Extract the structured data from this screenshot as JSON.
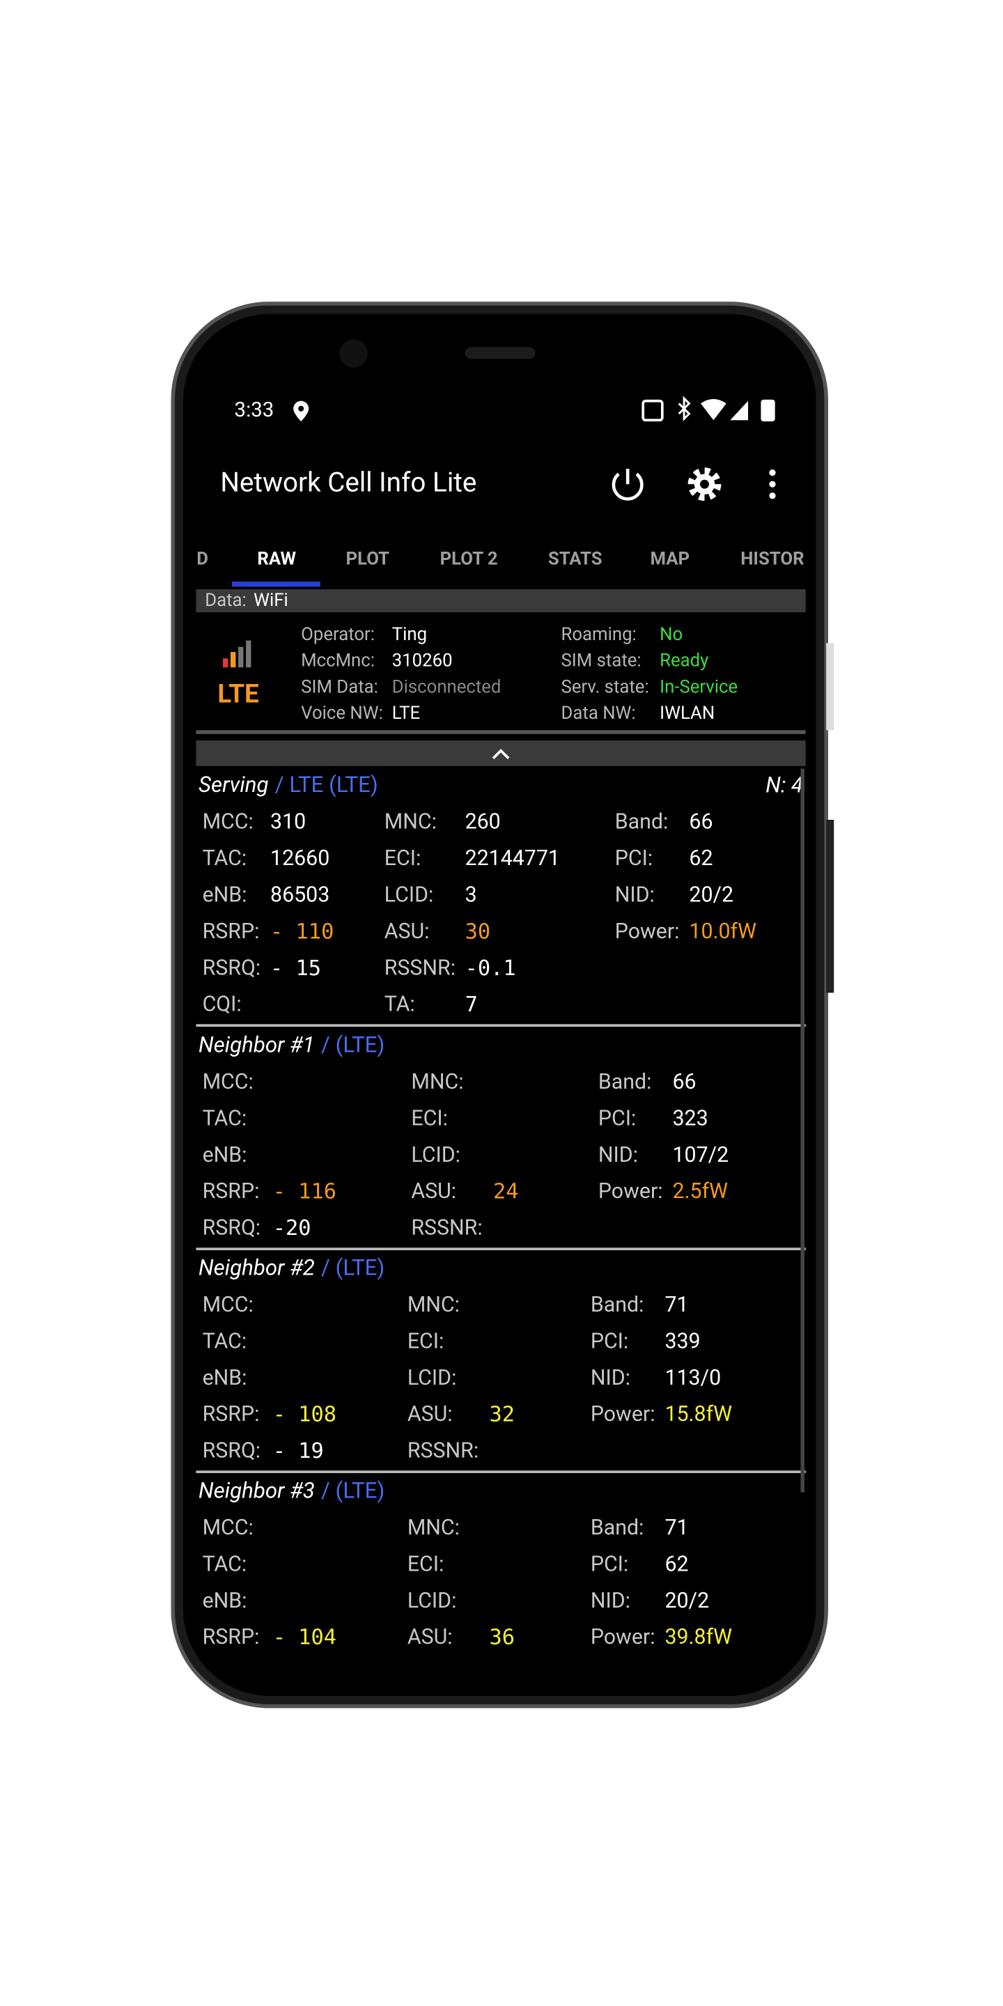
{
  "status_bar": {
    "time": "3:33"
  },
  "app_bar": {
    "title": "Network Cell Info Lite"
  },
  "tabs": {
    "items": [
      "D",
      "RAW",
      "PLOT",
      "PLOT 2",
      "STATS",
      "MAP",
      "HISTOR"
    ],
    "active": 1
  },
  "data_bar": {
    "label": "Data:",
    "value": "WiFi"
  },
  "info": {
    "network_type": "LTE",
    "left": [
      {
        "label": "Operator:",
        "value": "Ting"
      },
      {
        "label": "MccMnc:",
        "value": "310260"
      },
      {
        "label": "SIM Data:",
        "value": "Disconnected",
        "color": "#8a8a8a"
      },
      {
        "label": "Voice NW:",
        "value": "LTE"
      }
    ],
    "right": [
      {
        "label": "Roaming:",
        "value": "No",
        "color": "#3ddc3d"
      },
      {
        "label": "SIM state:",
        "value": "Ready",
        "color": "#3ddc3d"
      },
      {
        "label": "Serv. state:",
        "value": "In-Service",
        "color": "#3ddc3d"
      },
      {
        "label": "Data NW:",
        "value": "IWLAN"
      }
    ]
  },
  "sections": [
    {
      "title": "Serving",
      "tech": "/ LTE (LTE)",
      "count": "N: 4",
      "rows": [
        [
          {
            "label": "MCC:",
            "value": "310"
          },
          {
            "label": "MNC:",
            "value": "260"
          },
          {
            "label": "Band:",
            "value": "66"
          }
        ],
        [
          {
            "label": "TAC:",
            "value": "12660"
          },
          {
            "label": "ECI:",
            "value": "22144771"
          },
          {
            "label": "PCI:",
            "value": "62"
          }
        ],
        [
          {
            "label": "eNB:",
            "value": "86503"
          },
          {
            "label": "LCID:",
            "value": "3"
          },
          {
            "label": "NID:",
            "value": "20/2"
          }
        ],
        [
          {
            "label": "RSRP:",
            "value": "- 110",
            "color": "#f39a1e"
          },
          {
            "label": "ASU:",
            "value": "30",
            "color": "#f39a1e"
          },
          {
            "label": "Power:",
            "value": "10.0fW",
            "color": "#f39a1e"
          }
        ],
        [
          {
            "label": "RSRQ:",
            "value": "- 15"
          },
          {
            "label": "RSSNR:",
            "value": "-0.1"
          }
        ],
        [
          {
            "label": "CQI:"
          },
          {
            "label": "TA:",
            "value": "7"
          }
        ]
      ]
    },
    {
      "title": "Neighbor #1",
      "tech": "/ (LTE)",
      "rows": [
        [
          {
            "label": "MCC:"
          },
          {
            "label": "MNC:"
          },
          {
            "label": "Band:",
            "value": "66"
          }
        ],
        [
          {
            "label": "TAC:"
          },
          {
            "label": "ECI:"
          },
          {
            "label": "PCI:",
            "value": "323"
          }
        ],
        [
          {
            "label": "eNB:"
          },
          {
            "label": "LCID:"
          },
          {
            "label": "NID:",
            "value": "107/2"
          }
        ],
        [
          {
            "label": "RSRP:",
            "value": "- 116",
            "color": "#f39a1e"
          },
          {
            "label": "ASU:",
            "value": "24",
            "color": "#f39a1e"
          },
          {
            "label": "Power:",
            "value": "2.5fW",
            "color": "#f39a1e"
          }
        ],
        [
          {
            "label": "RSRQ:",
            "value": "-20"
          },
          {
            "label": "RSSNR:"
          }
        ]
      ]
    },
    {
      "title": "Neighbor #2",
      "tech": "/ (LTE)",
      "rows": [
        [
          {
            "label": "MCC:"
          },
          {
            "label": "MNC:"
          },
          {
            "label": "Band:",
            "value": "71"
          }
        ],
        [
          {
            "label": "TAC:"
          },
          {
            "label": "ECI:"
          },
          {
            "label": "PCI:",
            "value": "339"
          }
        ],
        [
          {
            "label": "eNB:"
          },
          {
            "label": "LCID:"
          },
          {
            "label": "NID:",
            "value": "113/0"
          }
        ],
        [
          {
            "label": "RSRP:",
            "value": "- 108",
            "color": "#f5f03a"
          },
          {
            "label": "ASU:",
            "value": "32",
            "color": "#f5f03a"
          },
          {
            "label": "Power:",
            "value": "15.8fW",
            "color": "#f5f03a"
          }
        ],
        [
          {
            "label": "RSRQ:",
            "value": "- 19"
          },
          {
            "label": "RSSNR:"
          }
        ]
      ]
    },
    {
      "title": "Neighbor #3",
      "tech": "/ (LTE)",
      "rows": [
        [
          {
            "label": "MCC:"
          },
          {
            "label": "MNC:"
          },
          {
            "label": "Band:",
            "value": "71"
          }
        ],
        [
          {
            "label": "TAC:"
          },
          {
            "label": "ECI:"
          },
          {
            "label": "PCI:",
            "value": "62"
          }
        ],
        [
          {
            "label": "eNB:"
          },
          {
            "label": "LCID:"
          },
          {
            "label": "NID:",
            "value": "20/2"
          }
        ],
        [
          {
            "label": "RSRP:",
            "value": "- 104",
            "color": "#f5f03a"
          },
          {
            "label": "ASU:",
            "value": "36",
            "color": "#f5f03a"
          },
          {
            "label": "Power:",
            "value": "39.8fW",
            "color": "#f5f03a"
          }
        ]
      ]
    }
  ]
}
